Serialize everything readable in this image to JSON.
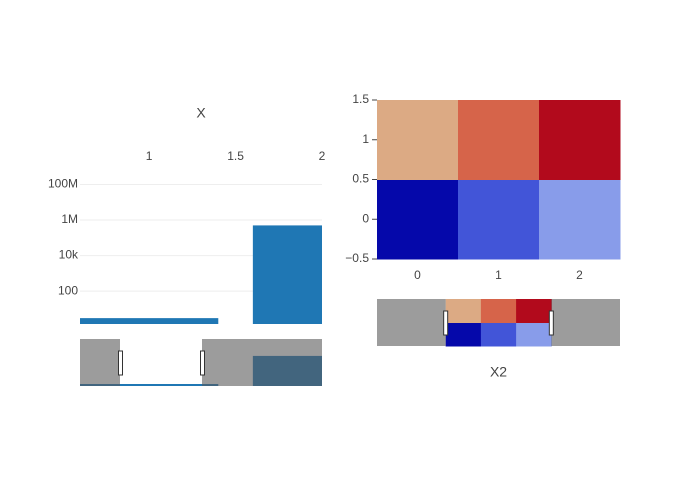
{
  "chart_data": [
    {
      "type": "bar",
      "x_title": "X",
      "x": [
        1,
        2
      ],
      "values": [
        3,
        500000
      ],
      "color": "#1f77b4",
      "xlim": [
        0.6,
        2
      ],
      "xticks": [
        1,
        1.5,
        2
      ],
      "ylim": [
        1.4,
        660000000
      ],
      "log_y": true,
      "yticks": [
        100,
        {
          "value": 10000,
          "label": "10k"
        },
        {
          "value": 1000000,
          "label": "1M"
        },
        {
          "value": 100000000,
          "label": "100M"
        }
      ],
      "grid": true,
      "x_axis_side": "top",
      "rangeslider": true
    },
    {
      "type": "heatmap",
      "x_title": "X2",
      "x": [
        0,
        1,
        2
      ],
      "y": [
        0,
        1
      ],
      "z": [
        [
          1,
          2,
          3
        ],
        [
          4,
          5,
          6
        ]
      ],
      "colorscale": [
        "#0508aa",
        "#4255d8",
        "#889cea",
        "#dcaa84",
        "#d6644a",
        "#b20a1c"
      ],
      "xlim": [
        -0.5,
        2.5
      ],
      "xticks": [
        0,
        1,
        2
      ],
      "ylim": [
        -0.5,
        1.5
      ],
      "yticks": [
        {
          "value": -0.5,
          "label": "−0.5"
        },
        0,
        0.5,
        1,
        1.5
      ],
      "rangeslider": true,
      "rangeslider_range": [
        -2.45,
        4.45
      ]
    }
  ]
}
